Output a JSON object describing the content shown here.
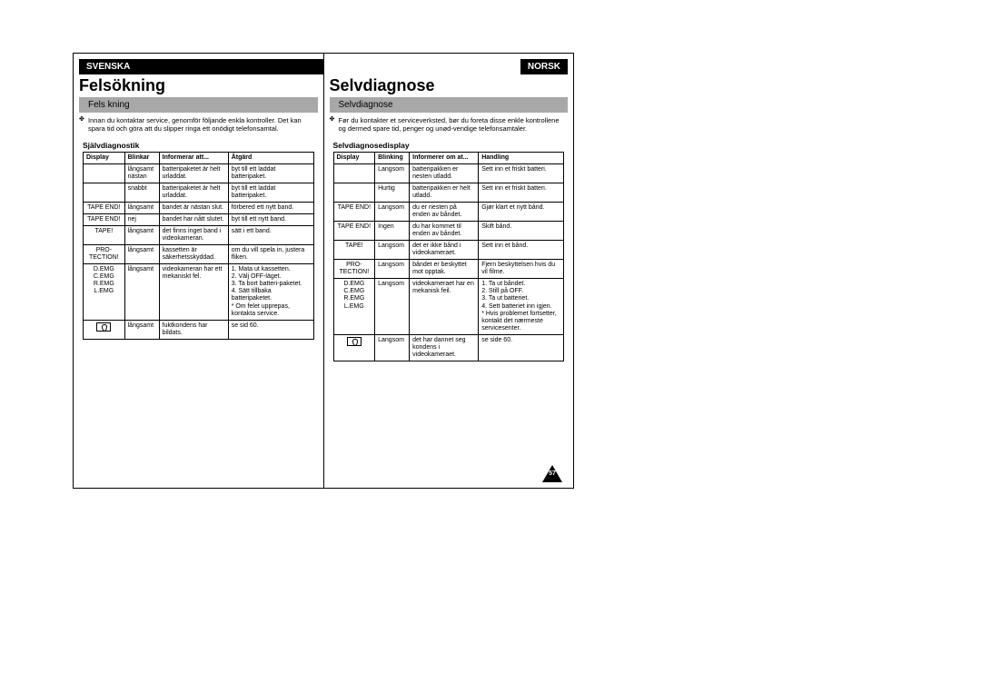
{
  "page_number": "57",
  "left": {
    "lang": "SVENSKA",
    "title": "Felsökning",
    "section": "Fels kning",
    "intro": "Innan du kontaktar service, genomför följande enkla kontroller. Det kan spara tid och göra att du slipper ringa ett onödigt telefonsamtal.",
    "table_title": "Självdiagnostik",
    "headers": [
      "Display",
      "Blinkar",
      "Informerar att...",
      "Åtgärd"
    ],
    "rows": [
      [
        "",
        "långsamt nästan",
        "batteripaketet är helt urladdat.",
        "byt till ett laddat batteripaket."
      ],
      [
        "",
        "snabbt",
        "batteripaketet är helt urladdat.",
        "byt till ett laddat batteripaket."
      ],
      [
        "TAPE END!",
        "långsamt",
        "bandet är nästan slut.",
        "förbered ett nytt band."
      ],
      [
        "TAPE END!",
        "nej",
        "bandet har nått slutet.",
        "byt till ett nytt band."
      ],
      [
        "TAPE!",
        "långsamt",
        "det finns inget band i videokameran.",
        "sätt i ett band."
      ],
      [
        "PRO-TECTION!",
        "långsamt",
        "kassetten är säkerhetsskyddad.",
        "om du vill spela in, justera fliken."
      ],
      [
        "D.EMG\nC.EMG\nR.EMG\nL.EMG",
        "långsamt",
        "videokameran har ett mekaniskt fel.",
        "1. Mata ut kassetten.\n2. Välj OFF-läget.\n3. Ta bort batteri-paketet.\n4. Sätt tillbaka batteripaketet.\n* Om felet upprepas, kontakta service."
      ],
      [
        "__DEW__",
        "långsamt",
        "fuktkondens har bildats.",
        "se sid 60."
      ]
    ]
  },
  "right": {
    "lang": "NORSK",
    "title": "Selvdiagnose",
    "section": "Selvdiagnose",
    "intro": "Før du kontakter et serviceverksted, bør du foreta disse enkle kontrollene og dermed spare tid, penger og unød-vendige telefonsamtaler.",
    "table_title": "Selvdiagnosedisplay",
    "headers": [
      "Display",
      "Blinking",
      "Informerer om at...",
      "Handling"
    ],
    "rows": [
      [
        "",
        "Langsom",
        "batteripakken er nesten utladd.",
        "Sett inn et friskt batteri."
      ],
      [
        "",
        "Hurtig",
        "batteripakken er helt utladd.",
        "Sett inn et friskt batteri."
      ],
      [
        "TAPE END!",
        "Langsom",
        "du er nesten på enden av båndet.",
        "Gjør klart et nytt bånd."
      ],
      [
        "TAPE END!",
        "Ingen",
        "du har kommet til enden av båndet.",
        "Skift bånd."
      ],
      [
        "TAPE!",
        "Langsom",
        "det er ikke bånd i videokameraet.",
        "Sett inn et bånd."
      ],
      [
        "PRO-TECTION!",
        "Langsom",
        "båndet er beskyttet mot opptak.",
        "Fjern beskyttelsen hvis du vil filme."
      ],
      [
        "D.EMG\nC.EMG\nR.EMG\nL.EMG",
        "Langsom",
        "videokameraet har en mekanisk feil.",
        "1. Ta ut båndet.\n2. Still på OFF.\n3. Ta ut batteriet.\n4. Sett batteriet inn igjen.\n* Hvis problemet fortsetter, kontakt det nærmeste servicesenter."
      ],
      [
        "__DEW__",
        "Langsom",
        "det har dannet seg kondens i videokameraet.",
        "se side 60."
      ]
    ]
  }
}
